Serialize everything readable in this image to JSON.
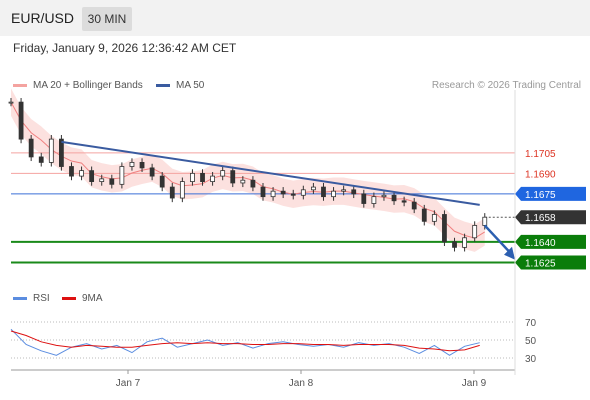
{
  "header": {
    "pair": "EUR/USD",
    "timeframe": "30 MIN"
  },
  "datetime": "Friday, January 9, 2026 12:36:42 AM CET",
  "credit": "Research © 2026 Trading Central",
  "legend": {
    "ma20": {
      "label": "MA 20 + Bollinger Bands",
      "color": "#f4a3a0"
    },
    "ma50": {
      "label": "MA 50",
      "color": "#3a5ba0"
    },
    "rsi": {
      "label": "RSI",
      "color": "#5b8de0"
    },
    "ma9": {
      "label": "9MA",
      "color": "#d11"
    }
  },
  "chart_data": {
    "type": "line",
    "price_range": [
      1.161,
      1.1745
    ],
    "levels": {
      "resistance": [
        1.1705,
        1.169
      ],
      "pivot": 1.1675,
      "current": 1.1658,
      "support": [
        1.164,
        1.1625
      ]
    },
    "level_labels": [
      "1.1705",
      "1.1690",
      "1.1675",
      "1.1658",
      "1.1640",
      "1.1625"
    ],
    "x_ticks": [
      "Jan 7",
      "Jan 8",
      "Jan 9"
    ],
    "rsi_ticks": [
      "70",
      "50",
      "30"
    ],
    "rsi_range": [
      20,
      80
    ],
    "price_t": [
      0,
      10,
      20,
      30,
      40,
      50,
      60,
      70,
      80,
      90,
      100,
      110,
      120,
      130,
      140,
      150,
      160,
      170,
      180,
      190,
      200,
      210,
      220,
      230,
      240,
      250,
      260,
      270,
      280,
      290,
      300,
      310,
      320,
      330,
      340,
      350,
      360,
      370,
      380,
      390,
      400,
      410,
      420,
      430,
      440,
      450,
      460,
      470
    ],
    "price": [
      1.1742,
      1.1715,
      1.1702,
      1.1698,
      1.1715,
      1.1695,
      1.1688,
      1.1692,
      1.1684,
      1.1686,
      1.1682,
      1.1695,
      1.1698,
      1.1694,
      1.1688,
      1.168,
      1.1672,
      1.1684,
      1.169,
      1.1684,
      1.1688,
      1.1692,
      1.1683,
      1.1685,
      1.168,
      1.1673,
      1.1677,
      1.1675,
      1.1674,
      1.1678,
      1.168,
      1.1673,
      1.1677,
      1.1678,
      1.1675,
      1.1668,
      1.1673,
      1.1674,
      1.167,
      1.1669,
      1.1664,
      1.1655,
      1.166,
      1.164,
      1.1636,
      1.1643,
      1.1652,
      1.1658
    ],
    "trendline": {
      "t": [
        50,
        465
      ],
      "price": [
        1.1713,
        1.1667
      ]
    },
    "forecast": {
      "t": [
        470,
        500
      ],
      "price": [
        1.1652,
        1.1627
      ]
    },
    "rsi_t": [
      0,
      15,
      30,
      45,
      60,
      75,
      90,
      105,
      120,
      135,
      150,
      165,
      180,
      195,
      210,
      225,
      240,
      255,
      270,
      285,
      300,
      315,
      330,
      345,
      360,
      375,
      390,
      405,
      420,
      435,
      450,
      465
    ],
    "rsi": [
      62,
      45,
      38,
      33,
      42,
      46,
      40,
      44,
      36,
      48,
      52,
      42,
      46,
      50,
      44,
      47,
      41,
      46,
      48,
      45,
      43,
      45,
      42,
      47,
      44,
      46,
      42,
      35,
      44,
      33,
      43,
      47
    ],
    "ma9": [
      60,
      55,
      48,
      44,
      42,
      44,
      43,
      42,
      42,
      44,
      46,
      47,
      46,
      47,
      46,
      46,
      45,
      45,
      46,
      46,
      45,
      45,
      44,
      45,
      45,
      45,
      44,
      41,
      40,
      38,
      39,
      44
    ]
  }
}
